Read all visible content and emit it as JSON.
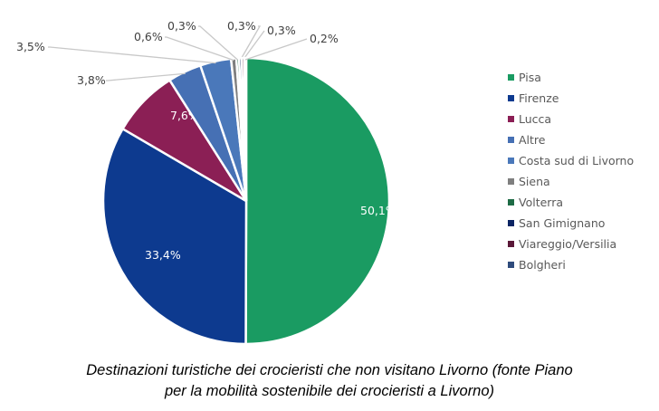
{
  "chart_data": {
    "type": "pie",
    "start": "top",
    "direction": "clockwise",
    "legend_position": "right",
    "categories": [
      "Pisa",
      "Firenze",
      "Lucca",
      "Altre",
      "Costa sud di Livorno",
      "Siena",
      "Volterra",
      "San Gimignano",
      "Viareggio/Versilia",
      "Bolgheri"
    ],
    "values": [
      50.1,
      33.4,
      7.6,
      3.8,
      3.5,
      0.6,
      0.3,
      0.3,
      0.3,
      0.2
    ],
    "labels": [
      "50,1%",
      "33,4%",
      "7,6%",
      "3,8%",
      "3,5%",
      "0,6%",
      "0,3%",
      "0,3%",
      "0,3%",
      "0,2%"
    ],
    "colors": [
      "#1a9b62",
      "#0d3a8f",
      "#8b1f55",
      "#4670b4",
      "#4a78ba",
      "#7f7f7f",
      "#1e6b45",
      "#0b2463",
      "#5a1838",
      "#2f4b7c"
    ]
  },
  "caption": {
    "line1": "Destinazioni turistiche dei crocieristi che non visitano Livorno (fonte Piano",
    "line2": "per la mobilità sostenibile dei crocieristi a Livorno)"
  }
}
